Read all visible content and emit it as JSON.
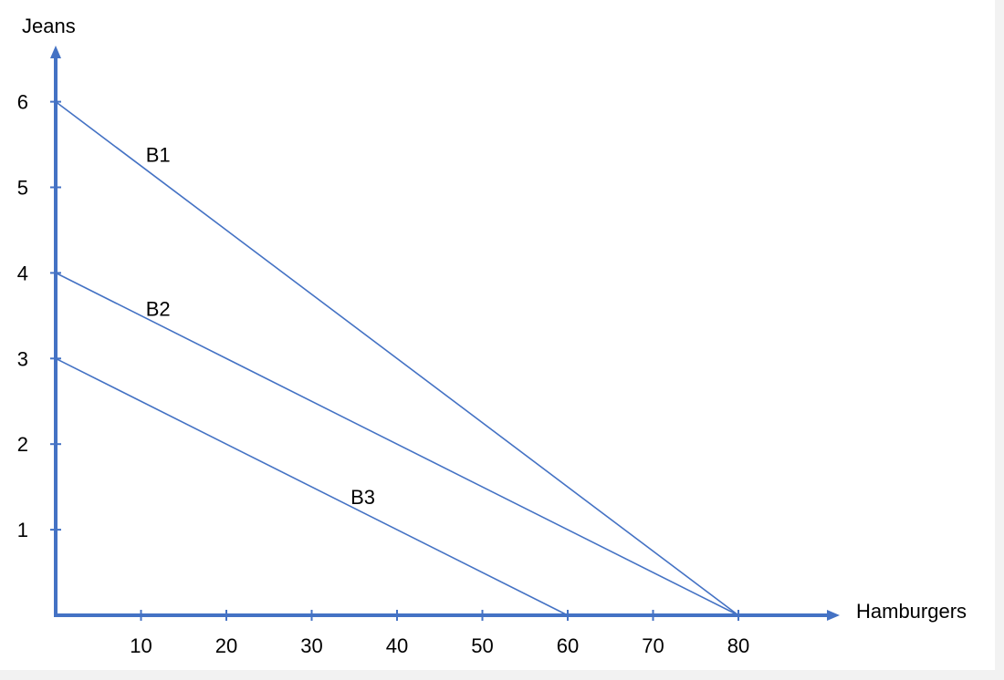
{
  "chart_data": {
    "type": "line",
    "xlabel": "Hamburgers",
    "ylabel": "Jeans",
    "xlim": [
      0,
      90
    ],
    "ylim": [
      0,
      6.5
    ],
    "x_ticks": [
      10,
      20,
      30,
      40,
      50,
      60,
      70,
      80
    ],
    "y_ticks": [
      1,
      2,
      3,
      4,
      5,
      6
    ],
    "x_tick_labels": [
      "10",
      "20",
      "30",
      "40",
      "50",
      "60",
      "70",
      "80"
    ],
    "y_tick_labels": [
      "1",
      "2",
      "3",
      "4",
      "5",
      "6"
    ],
    "grid": false,
    "line_color": "#4472c4",
    "series": [
      {
        "name": "B1",
        "x": [
          0,
          80
        ],
        "y": [
          6,
          0
        ],
        "label_at": [
          12,
          5.3
        ]
      },
      {
        "name": "B2",
        "x": [
          0,
          80
        ],
        "y": [
          4,
          0
        ],
        "label_at": [
          12,
          3.5
        ]
      },
      {
        "name": "B3",
        "x": [
          0,
          60
        ],
        "y": [
          3,
          0
        ],
        "label_at": [
          36,
          1.3
        ]
      }
    ]
  }
}
